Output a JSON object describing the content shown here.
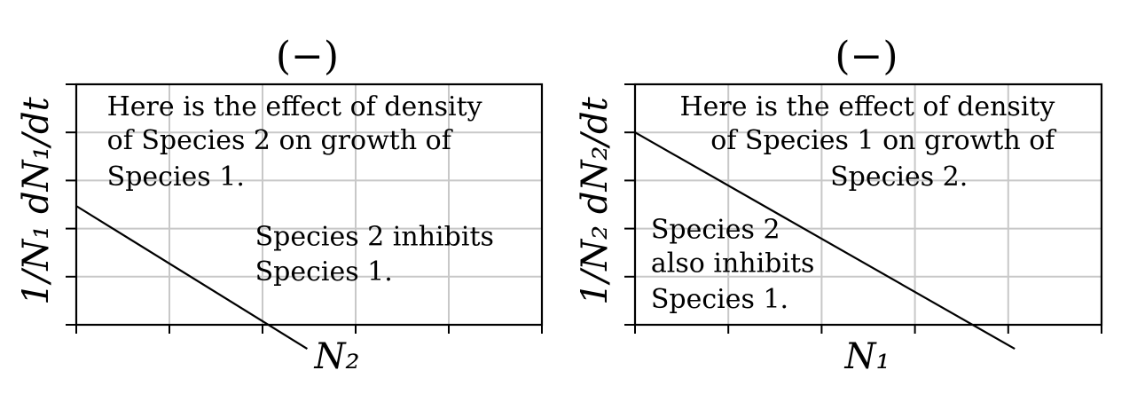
{
  "chart_data": [
    {
      "type": "line",
      "title": "(−)",
      "xlabel": "N₂",
      "ylabel": "1/N₁ dN₁/dt",
      "grid": true,
      "xlim": [
        0,
        5
      ],
      "ylim": [
        0,
        5
      ],
      "series": [
        {
          "x": [
            0,
            2.48
          ],
          "y": [
            2.47,
            -0.5
          ]
        }
      ],
      "annotations": [
        {
          "lines": [
            "Here is the effect of density",
            "of Species 2 on growth of",
            "Species 1."
          ],
          "x": 0.33,
          "y": [
            4.35,
            3.65,
            2.9
          ],
          "anchor": "start"
        },
        {
          "lines": [
            "Species 2 inhibits",
            "Species 1."
          ],
          "x": 1.92,
          "y": [
            1.65,
            0.92
          ],
          "anchor": "start"
        }
      ]
    },
    {
      "type": "line",
      "title": "(−)",
      "xlabel": "N₁",
      "ylabel": "1/N₂ dN₂/dt",
      "grid": true,
      "xlim": [
        0,
        5
      ],
      "ylim": [
        0,
        5
      ],
      "series": [
        {
          "x": [
            0,
            4.07
          ],
          "y": [
            4.0,
            -0.5
          ]
        }
      ],
      "annotations": [
        {
          "lines": [
            "Here is the effect of density",
            "of Species 1 on growth of",
            "Species 2."
          ],
          "x": [
            4.5,
            4.5,
            2.83
          ],
          "y": [
            4.35,
            3.65,
            2.9
          ],
          "anchor": [
            "end",
            "end",
            "middle"
          ]
        },
        {
          "lines": [
            "Species 2",
            "also inhibits",
            "Species 1."
          ],
          "x": 0.17,
          "y": [
            1.8,
            1.1,
            0.35
          ],
          "anchor": "start"
        }
      ]
    }
  ]
}
